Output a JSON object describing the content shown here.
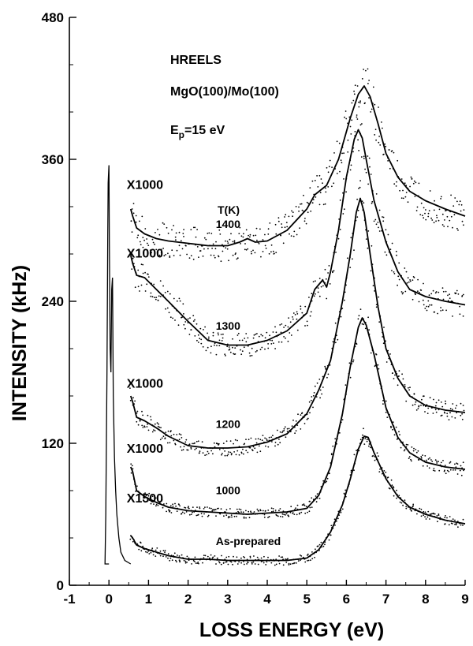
{
  "chart_data": {
    "type": "scatter",
    "title": "HREELS",
    "subtitle": "MgO(100)/Mo(100)",
    "beam_energy_label": {
      "main": "E",
      "sub": "p",
      "rest": "=15 eV"
    },
    "xlabel": "LOSS ENERGY (eV)",
    "ylabel": "INTENSITY (kHz)",
    "xlim": [
      -1,
      9
    ],
    "ylim": [
      0,
      480
    ],
    "xticks": [
      -1,
      0,
      1,
      2,
      3,
      4,
      5,
      6,
      7,
      8,
      9
    ],
    "yticks": [
      0,
      120,
      240,
      360,
      480
    ],
    "grid": false,
    "temperature_header": "T(K)",
    "series": [
      {
        "name": "As-prepared",
        "multiplier": "X1500",
        "points": [
          [
            0.55,
            42
          ],
          [
            0.6,
            40
          ],
          [
            0.7,
            34
          ],
          [
            0.9,
            31
          ],
          [
            1.2,
            28
          ],
          [
            1.5,
            25
          ],
          [
            2.0,
            22
          ],
          [
            2.5,
            22
          ],
          [
            3.0,
            21
          ],
          [
            3.5,
            21
          ],
          [
            4.0,
            21
          ],
          [
            4.5,
            21
          ],
          [
            5.0,
            23
          ],
          [
            5.3,
            30
          ],
          [
            5.6,
            45
          ],
          [
            5.9,
            68
          ],
          [
            6.1,
            90
          ],
          [
            6.3,
            115
          ],
          [
            6.45,
            126
          ],
          [
            6.55,
            125
          ],
          [
            6.7,
            112
          ],
          [
            7.0,
            90
          ],
          [
            7.3,
            75
          ],
          [
            7.6,
            66
          ],
          [
            8.0,
            60
          ],
          [
            8.5,
            55
          ],
          [
            9.0,
            52
          ]
        ]
      },
      {
        "name": "1000",
        "multiplier": "X1000",
        "points": [
          [
            0.55,
            100
          ],
          [
            0.6,
            96
          ],
          [
            0.7,
            80
          ],
          [
            0.9,
            75
          ],
          [
            1.2,
            70
          ],
          [
            1.5,
            66
          ],
          [
            2.0,
            63
          ],
          [
            2.5,
            62
          ],
          [
            3.0,
            61
          ],
          [
            3.5,
            60
          ],
          [
            4.0,
            61
          ],
          [
            4.5,
            62
          ],
          [
            5.0,
            65
          ],
          [
            5.3,
            76
          ],
          [
            5.6,
            100
          ],
          [
            5.9,
            145
          ],
          [
            6.1,
            185
          ],
          [
            6.3,
            218
          ],
          [
            6.4,
            226
          ],
          [
            6.5,
            220
          ],
          [
            6.7,
            195
          ],
          [
            7.0,
            150
          ],
          [
            7.3,
            125
          ],
          [
            7.6,
            112
          ],
          [
            8.0,
            104
          ],
          [
            8.5,
            100
          ],
          [
            9.0,
            98
          ]
        ]
      },
      {
        "name": "1200",
        "multiplier": "X1000",
        "points": [
          [
            0.55,
            160
          ],
          [
            0.6,
            155
          ],
          [
            0.7,
            142
          ],
          [
            0.9,
            139
          ],
          [
            1.2,
            133
          ],
          [
            1.5,
            126
          ],
          [
            2.0,
            118
          ],
          [
            2.5,
            116
          ],
          [
            3.0,
            116
          ],
          [
            3.5,
            117
          ],
          [
            4.0,
            121
          ],
          [
            4.5,
            128
          ],
          [
            5.0,
            145
          ],
          [
            5.3,
            165
          ],
          [
            5.6,
            190
          ],
          [
            5.9,
            240
          ],
          [
            6.1,
            280
          ],
          [
            6.25,
            315
          ],
          [
            6.35,
            327
          ],
          [
            6.45,
            315
          ],
          [
            6.6,
            280
          ],
          [
            6.8,
            235
          ],
          [
            7.0,
            200
          ],
          [
            7.3,
            175
          ],
          [
            7.6,
            160
          ],
          [
            8.0,
            152
          ],
          [
            8.5,
            148
          ],
          [
            9.0,
            146
          ]
        ]
      },
      {
        "name": "1300",
        "multiplier": "X1000",
        "points": [
          [
            0.55,
            279
          ],
          [
            0.6,
            272
          ],
          [
            0.7,
            262
          ],
          [
            0.9,
            260
          ],
          [
            1.2,
            250
          ],
          [
            1.5,
            240
          ],
          [
            2.0,
            223
          ],
          [
            2.5,
            207
          ],
          [
            3.0,
            203
          ],
          [
            3.5,
            203
          ],
          [
            4.0,
            207
          ],
          [
            4.5,
            215
          ],
          [
            5.0,
            230
          ],
          [
            5.2,
            250
          ],
          [
            5.4,
            258
          ],
          [
            5.5,
            252
          ],
          [
            5.6,
            265
          ],
          [
            5.8,
            300
          ],
          [
            6.0,
            345
          ],
          [
            6.2,
            377
          ],
          [
            6.3,
            385
          ],
          [
            6.4,
            378
          ],
          [
            6.5,
            360
          ],
          [
            6.7,
            325
          ],
          [
            7.0,
            290
          ],
          [
            7.3,
            265
          ],
          [
            7.6,
            250
          ],
          [
            8.0,
            244
          ],
          [
            8.5,
            240
          ],
          [
            9.0,
            237
          ]
        ]
      },
      {
        "name": "1400",
        "multiplier": "X1000",
        "points": [
          [
            0.55,
            318
          ],
          [
            0.6,
            312
          ],
          [
            0.7,
            302
          ],
          [
            0.9,
            297
          ],
          [
            1.2,
            293
          ],
          [
            1.5,
            291
          ],
          [
            2.0,
            289
          ],
          [
            2.5,
            287
          ],
          [
            3.0,
            287
          ],
          [
            3.3,
            290
          ],
          [
            3.5,
            293
          ],
          [
            3.7,
            290
          ],
          [
            4.0,
            291
          ],
          [
            4.5,
            300
          ],
          [
            5.0,
            318
          ],
          [
            5.2,
            330
          ],
          [
            5.5,
            338
          ],
          [
            5.8,
            360
          ],
          [
            6.1,
            395
          ],
          [
            6.3,
            415
          ],
          [
            6.45,
            422
          ],
          [
            6.6,
            413
          ],
          [
            6.8,
            390
          ],
          [
            7.0,
            365
          ],
          [
            7.3,
            345
          ],
          [
            7.6,
            333
          ],
          [
            8.0,
            325
          ],
          [
            8.5,
            318
          ],
          [
            9.0,
            312
          ]
        ]
      }
    ],
    "elastic_peak": {
      "points": [
        [
          0.0,
          18
        ],
        [
          -0.1,
          18
        ],
        [
          -0.08,
          60
        ],
        [
          -0.05,
          180
        ],
        [
          -0.03,
          295
        ],
        [
          -0.02,
          340
        ],
        [
          0.0,
          355
        ],
        [
          0.01,
          290
        ],
        [
          0.03,
          200
        ],
        [
          0.05,
          180
        ],
        [
          0.07,
          250
        ],
        [
          0.09,
          260
        ],
        [
          0.11,
          160
        ],
        [
          0.14,
          108
        ],
        [
          0.17,
          80
        ],
        [
          0.2,
          60
        ],
        [
          0.25,
          40
        ],
        [
          0.3,
          28
        ],
        [
          0.4,
          21
        ],
        [
          0.5,
          19
        ],
        [
          0.55,
          18
        ]
      ]
    }
  }
}
